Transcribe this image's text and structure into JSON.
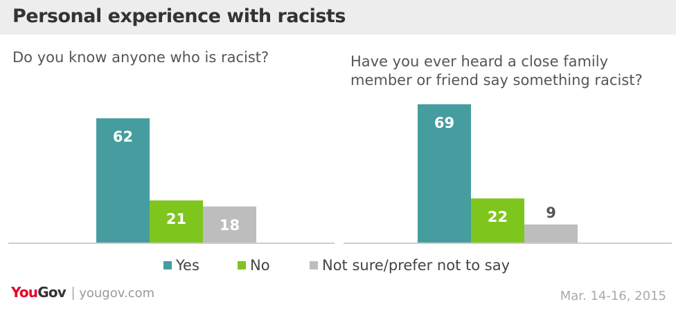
{
  "header": {
    "title": "Personal experience with racists"
  },
  "chart_data": [
    {
      "type": "bar",
      "title": "Do you know anyone who is racist?",
      "categories": [
        "Yes",
        "No",
        "Not sure/prefer not to say"
      ],
      "values": [
        62,
        21,
        18
      ],
      "ylim": [
        0,
        70
      ]
    },
    {
      "type": "bar",
      "title": "Have you ever heard a close family member or friend say something racist?",
      "categories": [
        "Yes",
        "No",
        "Not sure/prefer not to say"
      ],
      "values": [
        69,
        22,
        9
      ],
      "ylim": [
        0,
        70
      ]
    }
  ],
  "legend": {
    "items": [
      {
        "label": "Yes",
        "color": "#459d9f"
      },
      {
        "label": "No",
        "color": "#7ec51e"
      },
      {
        "label": "Not sure/prefer not to say",
        "color": "#bdbdbd"
      }
    ]
  },
  "footer": {
    "logo_you": "You",
    "logo_gov": "Gov",
    "logo_sep": "|",
    "url": "yougov.com",
    "date": "Mar. 14-16, 2015"
  },
  "colors": {
    "yes": "#459d9f",
    "no": "#7ec51e",
    "unsure": "#bdbdbd",
    "baseline": "#cccccc"
  }
}
